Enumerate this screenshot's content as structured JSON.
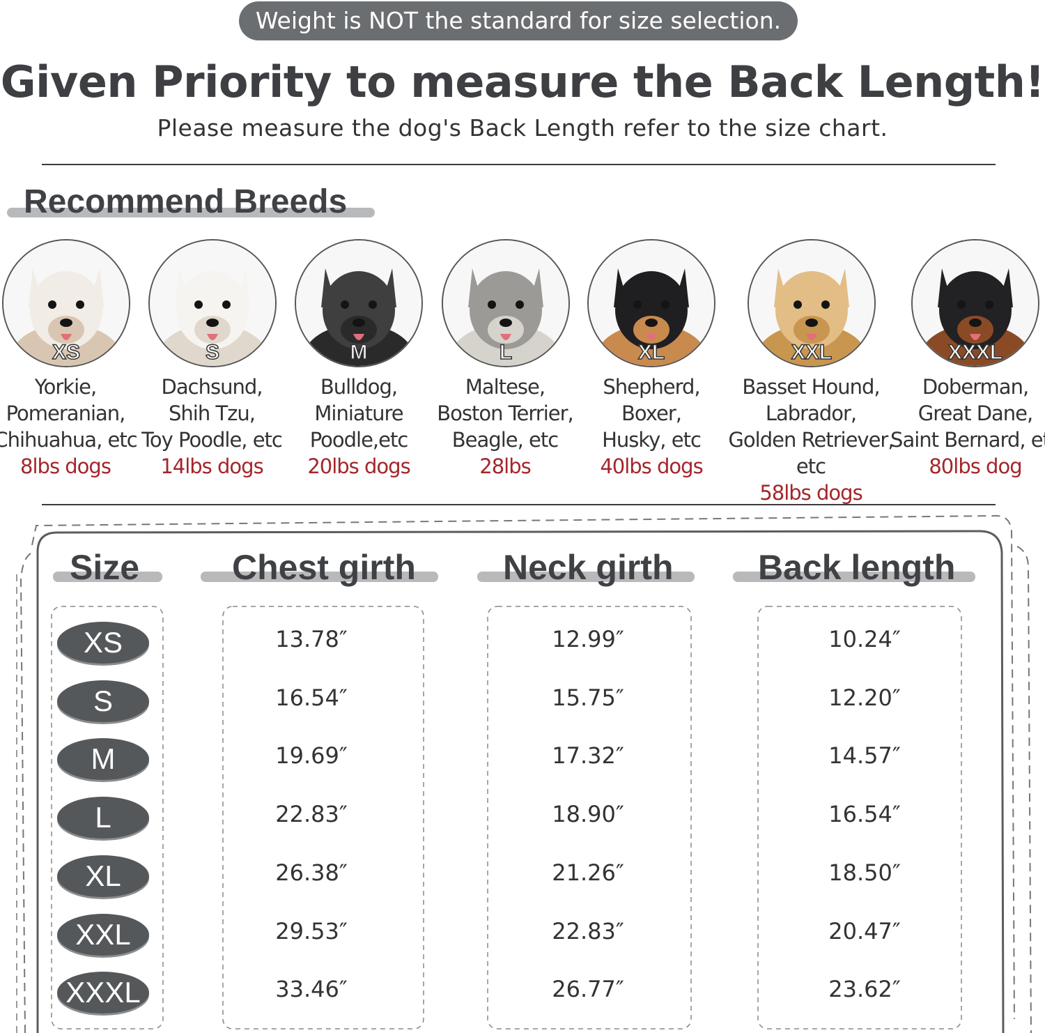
{
  "notice": "Weight is NOT the standard for size selection.",
  "headline": "Given Priority to measure the Back Length!",
  "subline": "Please measure the dog's Back Length refer to the size chart.",
  "recommend": {
    "title": "Recommend Breeds",
    "breeds": [
      {
        "size": "XS",
        "lines": [
          "Yorkie,",
          "Pomeranian,",
          "Chihuahua, etc"
        ],
        "weight": "8lbs dogs",
        "fur": "#f1ece6",
        "accent": "#d9c6b2"
      },
      {
        "size": "S",
        "lines": [
          "Dachsund,",
          "Shih Tzu,",
          "Toy Poodle, etc"
        ],
        "weight": "14lbs dogs",
        "fur": "#f6f4f0",
        "accent": "#e0d8cc"
      },
      {
        "size": "M",
        "lines": [
          "Bulldog,",
          "Miniature",
          "Poodle,etc"
        ],
        "weight": "20lbs dogs",
        "fur": "#3f3f40",
        "accent": "#2a2a2b"
      },
      {
        "size": "L",
        "lines": [
          "Maltese,",
          "Boston Terrier,",
          "Beagle, etc"
        ],
        "weight": "28lbs",
        "fur": "#9c9a96",
        "accent": "#d6d3cd"
      },
      {
        "size": "XL",
        "lines": [
          "Shepherd,",
          "Boxer,",
          "Husky, etc"
        ],
        "weight": "40lbs dogs",
        "fur": "#1f1f22",
        "accent": "#c98a4e"
      },
      {
        "size": "XXL",
        "lines": [
          "Basset Hound,",
          "Labrador,",
          "Golden Retriever, etc"
        ],
        "weight": "58lbs dogs",
        "fur": "#e2bd85",
        "accent": "#c8964f"
      },
      {
        "size": "XXXL",
        "lines": [
          "Doberman,",
          "Great Dane,",
          "Saint Bernard, etc"
        ],
        "weight": "80lbs dog",
        "fur": "#222124",
        "accent": "#8a4a26"
      }
    ]
  },
  "table": {
    "headers": {
      "size": "Size",
      "chest": "Chest girth",
      "neck": "Neck girth",
      "back": "Back length"
    },
    "rows": [
      {
        "size": "XS",
        "chest": "13.78″",
        "neck": "12.99″",
        "back": "10.24″"
      },
      {
        "size": "S",
        "chest": "16.54″",
        "neck": "15.75″",
        "back": "12.20″"
      },
      {
        "size": "M",
        "chest": "19.69″",
        "neck": "17.32″",
        "back": "14.57″"
      },
      {
        "size": "L",
        "chest": "22.83″",
        "neck": "18.90″",
        "back": "16.54″"
      },
      {
        "size": "XL",
        "chest": "26.38″",
        "neck": "21.26″",
        "back": "18.50″"
      },
      {
        "size": "XXL",
        "chest": "29.53″",
        "neck": "22.83″",
        "back": "20.47″"
      },
      {
        "size": "XXXL",
        "chest": "33.46″",
        "neck": "26.77″",
        "back": "23.62″"
      }
    ]
  }
}
